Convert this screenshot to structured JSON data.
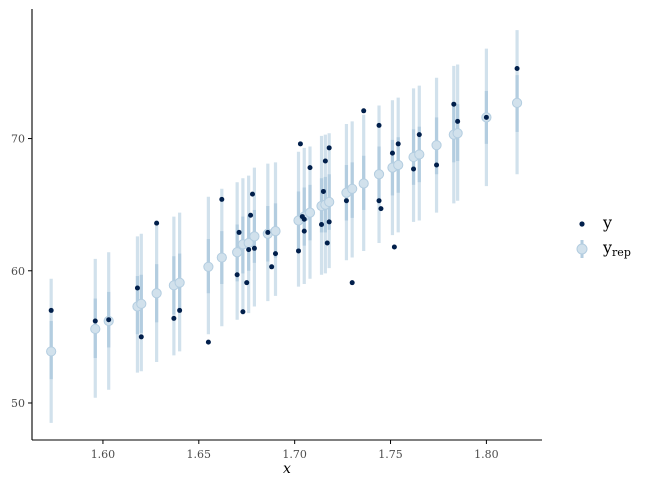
{
  "chart_data": {
    "type": "scatter",
    "xlabel": "x",
    "ylabel": "",
    "xlim": [
      1.563,
      1.829
    ],
    "ylim": [
      47.2,
      79.8
    ],
    "x_ticks": [
      "1.60",
      "1.65",
      "1.70",
      "1.75",
      "1.80"
    ],
    "x_tick_values": [
      1.6,
      1.65,
      1.7,
      1.75,
      1.8
    ],
    "y_ticks": [
      "50",
      "60",
      "70"
    ],
    "y_tick_values": [
      50,
      60,
      70
    ],
    "grid": false,
    "legend_position": "right",
    "legend": {
      "y_label": "y",
      "yrep_label": "y",
      "yrep_subscript": "rep"
    },
    "colors": {
      "y_point": "#011f4b",
      "yrep_point": "#d1e1ec",
      "yrep_point_edge": "#b3cde0",
      "interval_outer": "#d1e1ec",
      "interval_inner": "#b3cde0",
      "axis": "#000000"
    },
    "series": [
      {
        "name": "y",
        "kind": "points",
        "x": [
          1.573,
          1.596,
          1.603,
          1.618,
          1.62,
          1.628,
          1.637,
          1.64,
          1.655,
          1.662,
          1.67,
          1.671,
          1.673,
          1.675,
          1.676,
          1.677,
          1.678,
          1.679,
          1.686,
          1.688,
          1.69,
          1.702,
          1.703,
          1.704,
          1.705,
          1.705,
          1.708,
          1.714,
          1.715,
          1.716,
          1.717,
          1.718,
          1.718,
          1.727,
          1.73,
          1.736,
          1.744,
          1.744,
          1.745,
          1.751,
          1.752,
          1.754,
          1.762,
          1.765,
          1.774,
          1.783,
          1.785,
          1.8,
          1.816
        ],
        "y": [
          57.0,
          56.2,
          56.3,
          58.7,
          55.0,
          63.6,
          56.4,
          57.0,
          54.6,
          65.4,
          59.7,
          62.9,
          56.9,
          59.1,
          61.6,
          64.2,
          65.8,
          61.7,
          62.9,
          60.3,
          61.3,
          61.5,
          69.6,
          64.1,
          63.9,
          63.0,
          67.8,
          63.5,
          66.0,
          68.3,
          62.1,
          63.7,
          69.3,
          65.3,
          59.1,
          72.1,
          71.0,
          65.3,
          64.7,
          68.9,
          61.8,
          69.6,
          67.7,
          70.3,
          68.0,
          72.6,
          71.3,
          71.6,
          75.3
        ]
      },
      {
        "name": "y",
        "kind": "intervals",
        "x": [
          1.573,
          1.596,
          1.603,
          1.618,
          1.62,
          1.628,
          1.637,
          1.64,
          1.655,
          1.662,
          1.67,
          1.673,
          1.676,
          1.679,
          1.686,
          1.69,
          1.702,
          1.705,
          1.708,
          1.714,
          1.716,
          1.718,
          1.727,
          1.73,
          1.736,
          1.744,
          1.751,
          1.754,
          1.762,
          1.765,
          1.774,
          1.783,
          1.785,
          1.8,
          1.816
        ],
        "median": [
          53.9,
          55.6,
          56.2,
          57.3,
          57.5,
          58.3,
          58.9,
          59.1,
          60.3,
          61.0,
          61.4,
          62.0,
          62.1,
          62.6,
          62.8,
          63.0,
          63.8,
          64.1,
          64.4,
          64.9,
          65.0,
          65.2,
          65.9,
          66.2,
          66.6,
          67.3,
          67.8,
          68.0,
          68.6,
          68.8,
          69.5,
          70.3,
          70.4,
          71.6,
          72.7
        ],
        "low50": [
          51.8,
          53.4,
          54.2,
          55.2,
          55.3,
          56.1,
          56.7,
          56.9,
          58.3,
          59.0,
          59.2,
          59.8,
          60.0,
          60.6,
          60.7,
          61.0,
          61.6,
          61.9,
          62.3,
          62.9,
          62.9,
          63.1,
          63.8,
          64.0,
          64.6,
          65.1,
          65.7,
          65.9,
          66.5,
          66.7,
          67.3,
          68.2,
          68.3,
          69.6,
          70.5
        ],
        "high50": [
          56.2,
          57.9,
          58.4,
          59.6,
          59.7,
          60.5,
          61.1,
          61.3,
          62.4,
          63.0,
          63.5,
          64.1,
          64.2,
          64.6,
          64.9,
          65.1,
          66.0,
          66.3,
          66.5,
          67.0,
          67.1,
          67.3,
          68.0,
          68.2,
          68.7,
          69.4,
          69.9,
          70.1,
          70.7,
          70.9,
          71.6,
          72.5,
          72.6,
          73.6,
          74.8
        ],
        "low90": [
          48.5,
          50.4,
          51.0,
          52.3,
          52.4,
          53.1,
          53.6,
          53.9,
          55.2,
          55.8,
          56.3,
          56.7,
          56.8,
          57.3,
          57.7,
          58.1,
          58.8,
          59.0,
          59.4,
          59.7,
          59.8,
          60.2,
          60.8,
          61.0,
          61.5,
          62.1,
          62.7,
          62.9,
          63.7,
          63.8,
          64.4,
          65.1,
          65.3,
          66.4,
          67.3
        ],
        "high90": [
          59.4,
          60.9,
          61.4,
          62.6,
          62.8,
          63.4,
          64.1,
          64.4,
          65.6,
          66.2,
          66.7,
          67.0,
          67.2,
          67.8,
          68.1,
          68.2,
          69.0,
          69.3,
          69.4,
          70.2,
          70.3,
          70.4,
          71.1,
          71.3,
          71.8,
          72.5,
          72.9,
          73.1,
          73.8,
          74.0,
          74.6,
          75.5,
          75.6,
          76.8,
          78.2
        ]
      }
    ]
  }
}
